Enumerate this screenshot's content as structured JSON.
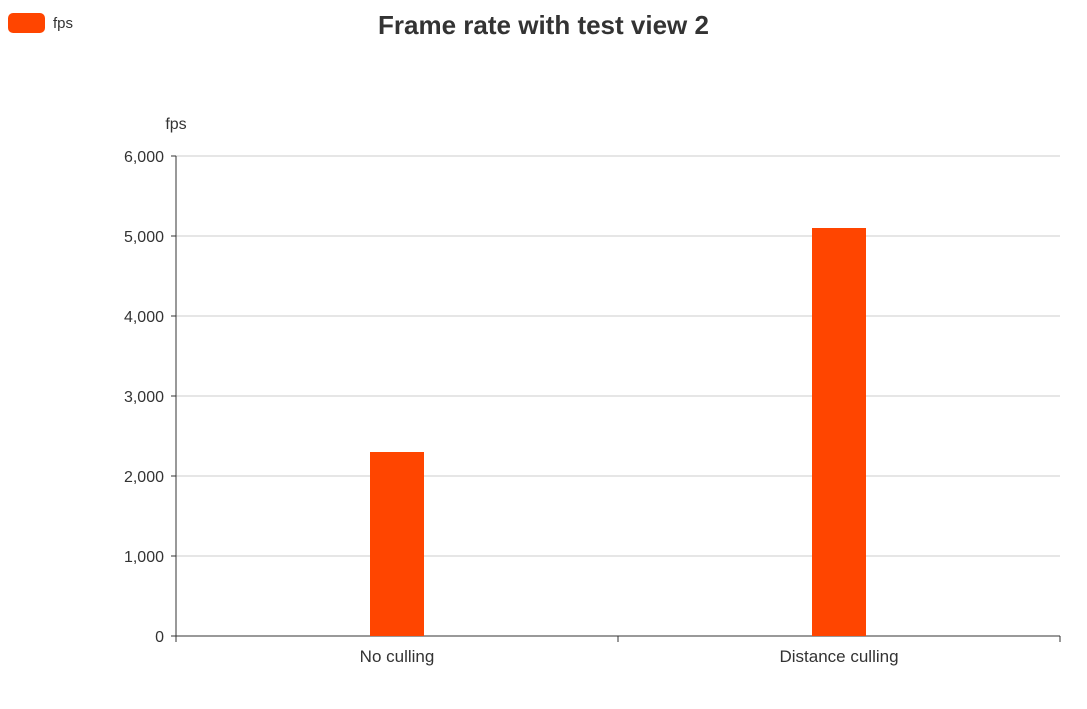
{
  "colors": {
    "bar": "#ff4500",
    "axis": "#333333",
    "grid": "#cccccc",
    "text": "#333333"
  },
  "chart_data": {
    "type": "bar",
    "title": "Frame rate with test view 2",
    "xlabel": "",
    "ylabel": "fps",
    "categories": [
      "No culling",
      "Distance culling"
    ],
    "series": [
      {
        "name": "fps",
        "values": [
          2300,
          5100
        ]
      }
    ],
    "ylim": [
      0,
      6000
    ],
    "yticks": [
      0,
      1000,
      2000,
      3000,
      4000,
      5000,
      6000
    ],
    "grid": true,
    "legend_position": "top-left"
  }
}
